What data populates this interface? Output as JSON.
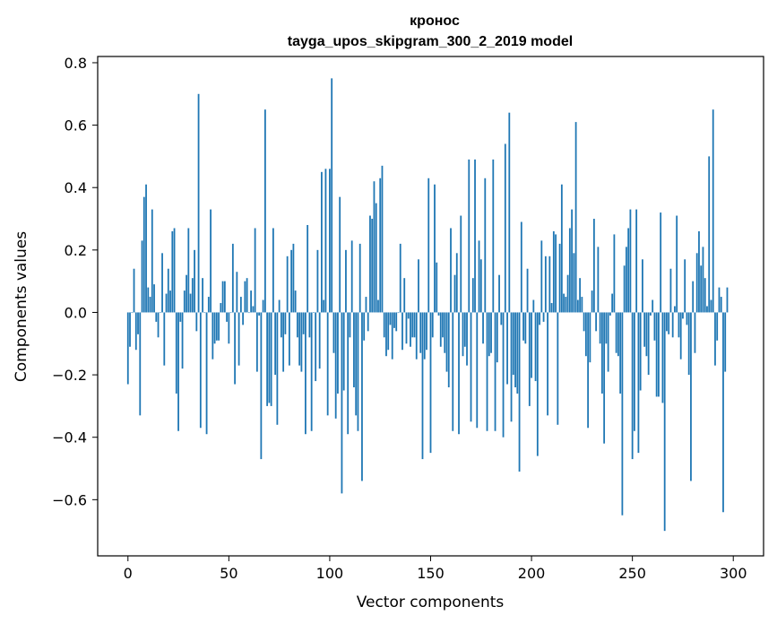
{
  "chart_data": {
    "type": "bar",
    "title_line1": "кронос",
    "title_line2": "tayga_upos_skipgram_300_2_2019 model",
    "xlabel": "Vector components",
    "ylabel": "Components values",
    "xlim": [
      -15,
      315
    ],
    "ylim": [
      -0.78,
      0.82
    ],
    "xticks": [
      0,
      50,
      100,
      150,
      200,
      250,
      300
    ],
    "xtick_labels": [
      "0",
      "50",
      "100",
      "150",
      "200",
      "250",
      "300"
    ],
    "yticks": [
      -0.6,
      -0.4,
      -0.2,
      0.0,
      0.2,
      0.4,
      0.6,
      0.8
    ],
    "ytick_labels": [
      "−0.6",
      "−0.4",
      "−0.2",
      "0.0",
      "0.2",
      "0.4",
      "0.6",
      "0.8"
    ],
    "bar_color": "#1f77b4",
    "values": [
      -0.23,
      -0.11,
      0.0,
      0.14,
      -0.12,
      -0.07,
      -0.33,
      0.23,
      0.37,
      0.41,
      0.08,
      0.05,
      0.33,
      0.09,
      -0.03,
      -0.08,
      0.0,
      0.19,
      -0.17,
      0.06,
      0.14,
      0.07,
      0.26,
      0.27,
      -0.26,
      -0.38,
      -0.03,
      -0.18,
      0.07,
      0.12,
      0.27,
      0.06,
      0.11,
      0.2,
      -0.06,
      0.7,
      -0.37,
      0.11,
      0.0,
      -0.39,
      0.05,
      0.33,
      -0.15,
      -0.1,
      -0.09,
      -0.09,
      0.03,
      0.1,
      0.1,
      -0.03,
      -0.1,
      0.0,
      0.22,
      -0.23,
      0.13,
      -0.17,
      0.05,
      -0.04,
      0.1,
      0.11,
      0.0,
      0.07,
      0.02,
      0.27,
      -0.19,
      -0.01,
      -0.47,
      0.04,
      0.65,
      -0.3,
      -0.29,
      -0.3,
      0.27,
      -0.2,
      -0.36,
      0.04,
      -0.08,
      -0.19,
      -0.07,
      0.18,
      -0.17,
      0.2,
      0.22,
      0.07,
      -0.08,
      -0.17,
      -0.19,
      -0.07,
      -0.39,
      0.28,
      -0.08,
      -0.38,
      0.0,
      -0.22,
      0.2,
      -0.18,
      0.45,
      0.04,
      0.46,
      -0.33,
      0.46,
      0.75,
      -0.13,
      -0.34,
      -0.26,
      0.37,
      -0.58,
      -0.25,
      0.2,
      -0.39,
      -0.08,
      0.23,
      -0.24,
      -0.33,
      -0.38,
      0.22,
      -0.54,
      -0.09,
      0.05,
      -0.06,
      0.31,
      0.3,
      0.42,
      0.35,
      0.04,
      0.43,
      0.47,
      -0.08,
      -0.14,
      -0.12,
      -0.04,
      -0.15,
      -0.05,
      -0.06,
      0.0,
      0.22,
      -0.12,
      0.11,
      -0.1,
      -0.02,
      -0.11,
      -0.08,
      -0.08,
      -0.15,
      0.17,
      -0.13,
      -0.47,
      -0.15,
      -0.12,
      0.43,
      -0.45,
      -0.08,
      0.41,
      0.16,
      -0.01,
      -0.11,
      -0.08,
      -0.13,
      -0.19,
      -0.24,
      0.27,
      -0.38,
      0.12,
      0.19,
      -0.39,
      0.31,
      -0.14,
      -0.11,
      -0.17,
      0.49,
      -0.35,
      0.11,
      0.49,
      -0.37,
      0.23,
      0.17,
      -0.1,
      0.43,
      -0.38,
      -0.14,
      -0.13,
      0.49,
      -0.38,
      -0.16,
      0.12,
      -0.04,
      -0.4,
      0.54,
      -0.23,
      0.64,
      -0.35,
      -0.2,
      -0.24,
      -0.26,
      -0.51,
      0.29,
      -0.09,
      -0.1,
      0.14,
      -0.3,
      -0.21,
      0.04,
      -0.22,
      -0.46,
      -0.04,
      0.23,
      -0.03,
      0.18,
      -0.33,
      0.18,
      0.03,
      0.26,
      0.25,
      -0.36,
      0.22,
      0.41,
      0.06,
      0.05,
      0.12,
      0.27,
      0.33,
      0.19,
      0.61,
      0.04,
      0.11,
      0.05,
      -0.06,
      -0.14,
      -0.37,
      -0.16,
      0.07,
      0.3,
      -0.06,
      0.21,
      -0.1,
      -0.26,
      -0.42,
      -0.1,
      -0.19,
      -0.01,
      0.06,
      0.25,
      -0.13,
      -0.14,
      -0.26,
      -0.65,
      0.15,
      0.21,
      0.27,
      0.33,
      -0.47,
      -0.38,
      0.33,
      -0.45,
      -0.25,
      0.17,
      -0.11,
      -0.14,
      -0.2,
      -0.01,
      0.04,
      -0.09,
      -0.27,
      -0.27,
      0.32,
      -0.29,
      -0.7,
      -0.06,
      -0.07,
      0.14,
      -0.08,
      0.02,
      0.31,
      -0.08,
      -0.15,
      -0.02,
      0.17,
      -0.04,
      -0.2,
      -0.54,
      0.1,
      -0.13,
      0.19,
      0.26,
      0.15,
      0.21,
      0.11,
      0.02,
      0.5,
      0.04,
      0.65,
      -0.17,
      -0.09,
      0.08,
      0.05,
      -0.64,
      -0.19,
      0.08
    ]
  }
}
